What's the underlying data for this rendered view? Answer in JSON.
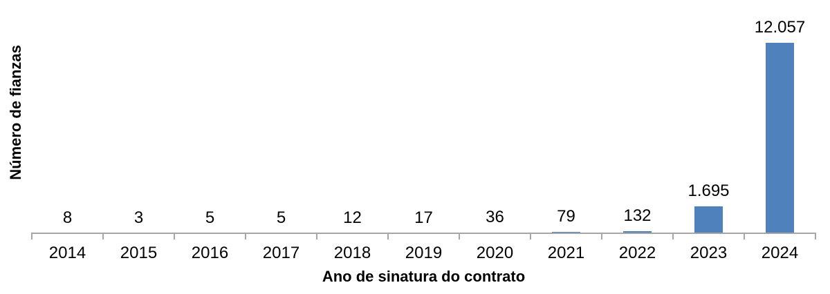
{
  "chart_data": {
    "type": "bar",
    "title": "",
    "categories": [
      "2014",
      "2015",
      "2016",
      "2017",
      "2018",
      "2019",
      "2020",
      "2021",
      "2022",
      "2023",
      "2024"
    ],
    "values": [
      8,
      3,
      5,
      5,
      12,
      17,
      36,
      79,
      132,
      1695,
      12057
    ],
    "value_labels": [
      "8",
      "3",
      "5",
      "5",
      "12",
      "17",
      "36",
      "79",
      "132",
      "1.695",
      "12.057"
    ],
    "xlabel": "Ano de sinatura do contrato",
    "ylabel": "Número de fianzas",
    "ylim": [
      0,
      12057
    ],
    "grid": false,
    "legend": "none",
    "bar_color": "#4F81BD",
    "axis_color": "#A6A6A6",
    "text_color": "#000000"
  }
}
